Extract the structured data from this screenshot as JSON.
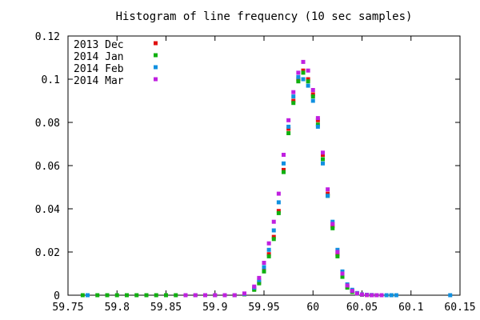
{
  "chart_data": {
    "type": "scatter",
    "title": "Histogram of line frequency (10 sec samples)",
    "xlabel": "",
    "ylabel": "",
    "xlim": [
      59.75,
      60.15
    ],
    "ylim": [
      0,
      0.12
    ],
    "x_ticks": [
      "59.75",
      "59.8",
      "59.85",
      "59.9",
      "59.95",
      "60",
      "60.05",
      "60.1",
      "60.15"
    ],
    "y_ticks": [
      "0",
      "0.02",
      "0.04",
      "0.06",
      "0.08",
      "0.1",
      "0.12"
    ],
    "x_tick_values": [
      59.75,
      59.8,
      59.85,
      59.9,
      59.95,
      60.0,
      60.05,
      60.1,
      60.15
    ],
    "y_tick_values": [
      0,
      0.02,
      0.04,
      0.06,
      0.08,
      0.1,
      0.12
    ],
    "grid": false,
    "legend_position": "top-left",
    "series": [
      {
        "name": "2013 Dec",
        "color": "#e01010",
        "x": [
          59.93,
          59.94,
          59.945,
          59.95,
          59.955,
          59.96,
          59.965,
          59.97,
          59.975,
          59.98,
          59.985,
          59.99,
          59.995,
          60.0,
          60.005,
          60.01,
          60.015,
          60.02,
          60.025,
          60.03,
          60.035,
          60.04,
          60.045,
          60.05,
          60.055,
          60.06,
          60.065,
          60.07
        ],
        "y": [
          0.0005,
          0.003,
          0.006,
          0.012,
          0.019,
          0.027,
          0.039,
          0.058,
          0.077,
          0.09,
          0.1,
          0.104,
          0.1,
          0.093,
          0.081,
          0.065,
          0.047,
          0.032,
          0.019,
          0.009,
          0.004,
          0.002,
          0.0008,
          0.0003,
          0.0001,
          0.0,
          0.0,
          0.0
        ]
      },
      {
        "name": "2014 Jan",
        "color": "#10b010",
        "x": [
          59.765,
          59.78,
          59.79,
          59.8,
          59.81,
          59.82,
          59.83,
          59.84,
          59.85,
          59.86,
          59.87,
          59.88,
          59.89,
          59.9,
          59.91,
          59.92,
          59.93,
          59.94,
          59.945,
          59.95,
          59.955,
          59.96,
          59.965,
          59.97,
          59.975,
          59.98,
          59.985,
          59.99,
          59.995,
          60.0,
          60.005,
          60.01,
          60.015,
          60.02,
          60.025,
          60.03,
          60.035,
          60.04,
          60.045,
          60.05,
          60.06,
          60.07,
          60.08
        ],
        "y": [
          0,
          0,
          0,
          0,
          0,
          0,
          0,
          0,
          0,
          0,
          0,
          0,
          0,
          0,
          0,
          0,
          0.0004,
          0.0025,
          0.0055,
          0.011,
          0.018,
          0.026,
          0.038,
          0.057,
          0.075,
          0.089,
          0.099,
          0.103,
          0.099,
          0.092,
          0.079,
          0.063,
          0.046,
          0.031,
          0.018,
          0.0085,
          0.0035,
          0.0015,
          0.0007,
          0.0002,
          0,
          0,
          0
        ]
      },
      {
        "name": "2014 Feb",
        "color": "#1090e0",
        "x": [
          59.77,
          59.93,
          59.94,
          59.945,
          59.95,
          59.955,
          59.96,
          59.965,
          59.97,
          59.975,
          59.98,
          59.985,
          59.99,
          59.995,
          60.0,
          60.005,
          60.01,
          60.015,
          60.02,
          60.025,
          60.03,
          60.035,
          60.04,
          60.045,
          60.05,
          60.055,
          60.06,
          60.065,
          60.07,
          60.075,
          60.08,
          60.085,
          60.14
        ],
        "y": [
          0,
          0.0006,
          0.0035,
          0.007,
          0.013,
          0.021,
          0.03,
          0.043,
          0.061,
          0.078,
          0.092,
          0.101,
          0.1,
          0.097,
          0.09,
          0.078,
          0.061,
          0.046,
          0.034,
          0.021,
          0.011,
          0.005,
          0.0025,
          0.001,
          0.0004,
          0.0002,
          0.0001,
          0,
          0,
          0,
          0,
          0,
          0
        ]
      },
      {
        "name": "2014 Mar",
        "color": "#c020e0",
        "x": [
          59.87,
          59.88,
          59.89,
          59.9,
          59.91,
          59.92,
          59.93,
          59.94,
          59.945,
          59.95,
          59.955,
          59.96,
          59.965,
          59.97,
          59.975,
          59.98,
          59.985,
          59.99,
          59.995,
          60.0,
          60.005,
          60.01,
          60.015,
          60.02,
          60.025,
          60.03,
          60.035,
          60.04,
          60.045,
          60.05,
          60.055,
          60.06,
          60.065,
          60.07
        ],
        "y": [
          0,
          0,
          0,
          0,
          0,
          0,
          0.0008,
          0.004,
          0.008,
          0.015,
          0.024,
          0.034,
          0.047,
          0.065,
          0.081,
          0.094,
          0.103,
          0.108,
          0.104,
          0.095,
          0.082,
          0.066,
          0.049,
          0.033,
          0.02,
          0.01,
          0.0045,
          0.002,
          0.0008,
          0.0003,
          0.0001,
          0,
          0,
          0
        ]
      }
    ]
  }
}
